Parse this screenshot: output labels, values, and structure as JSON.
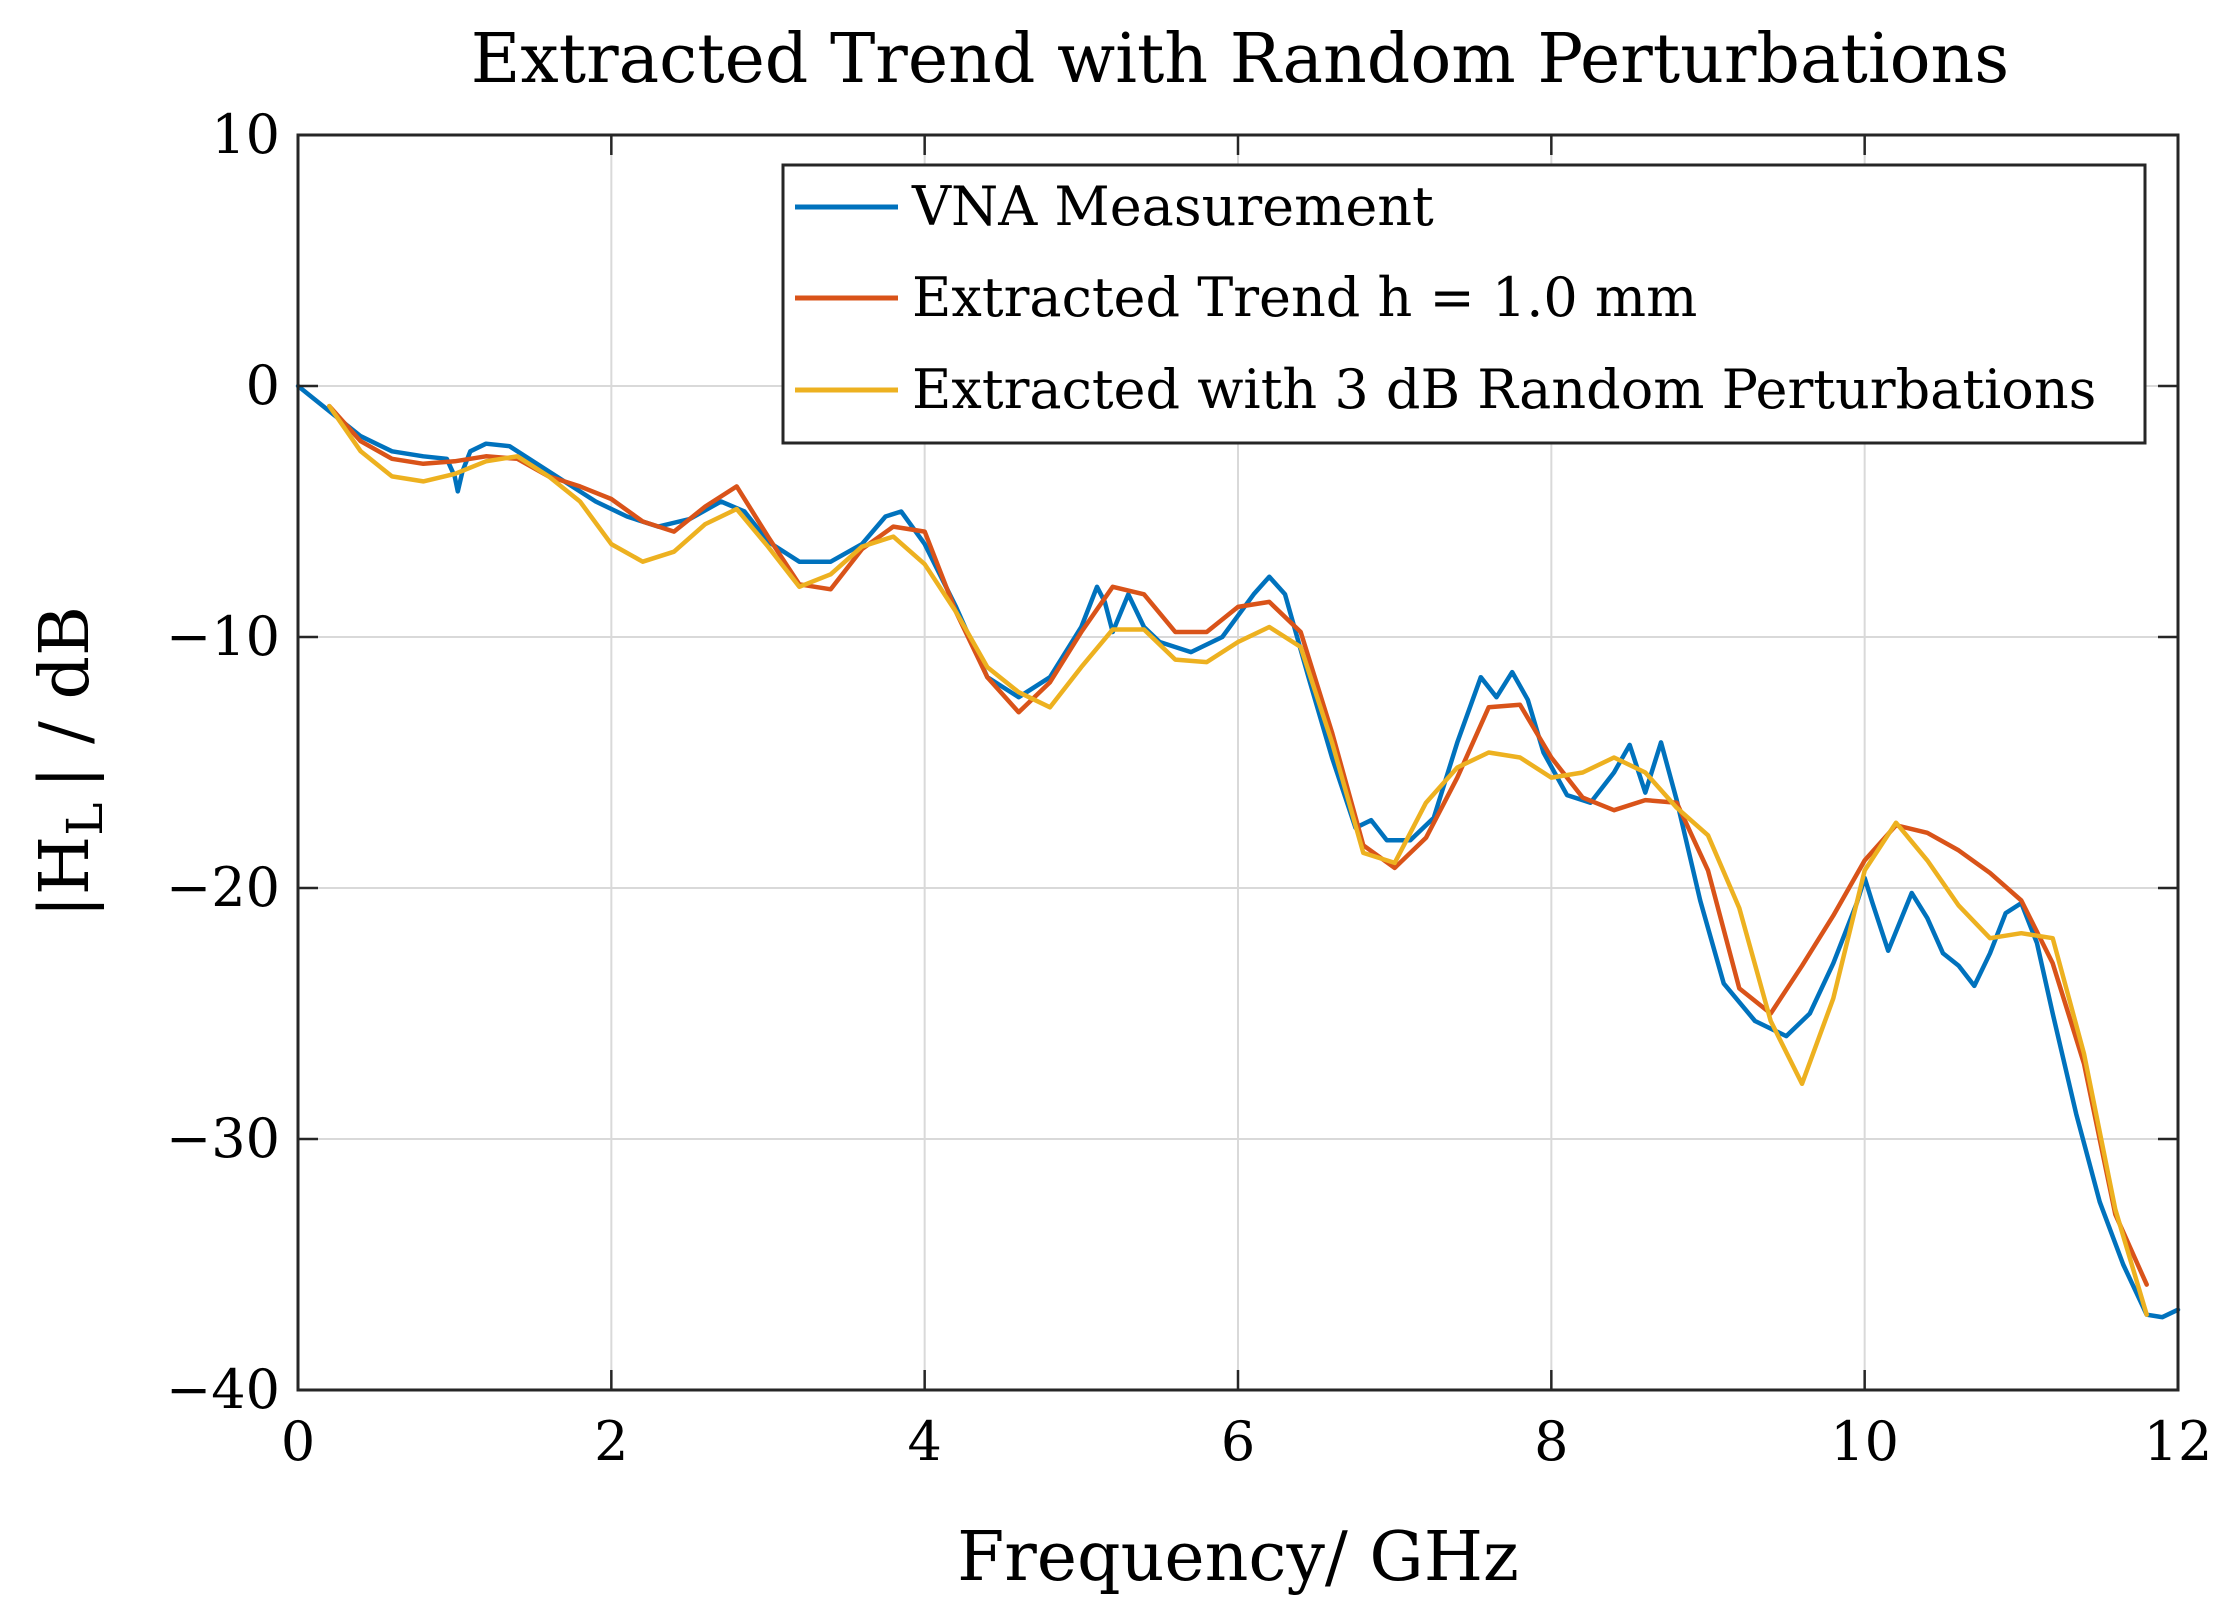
{
  "chart_data": {
    "type": "line",
    "title": "Extracted Trend with Random Perturbations",
    "xlabel": "Frequency/ GHz",
    "ylabel_main": "|H",
    "ylabel_sub": "L",
    "ylabel_rest": "| / dB",
    "xlim": [
      0,
      12
    ],
    "ylim": [
      -40,
      10
    ],
    "xticks": [
      0,
      2,
      4,
      6,
      8,
      10,
      12
    ],
    "xtick_labels": [
      "0",
      "2",
      "4",
      "6",
      "8",
      "10",
      "12"
    ],
    "yticks": [
      10,
      0,
      -10,
      -20,
      -30,
      -40
    ],
    "ytick_labels": [
      "10",
      "0",
      "−10",
      "−20",
      "−30",
      "−40"
    ],
    "grid": true,
    "legend_position": "top-right",
    "series": [
      {
        "name": "VNA Measurement",
        "color": "#0072BD",
        "x": [
          0,
          0.2,
          0.4,
          0.6,
          0.8,
          0.95,
          1.0,
          1.02,
          1.05,
          1.1,
          1.2,
          1.35,
          1.5,
          1.7,
          1.9,
          2.1,
          2.3,
          2.5,
          2.7,
          2.85,
          3.0,
          3.2,
          3.4,
          3.6,
          3.75,
          3.85,
          4.0,
          4.2,
          4.4,
          4.6,
          4.8,
          5.0,
          5.1,
          5.15,
          5.2,
          5.3,
          5.4,
          5.5,
          5.7,
          5.9,
          6.1,
          6.2,
          6.3,
          6.45,
          6.6,
          6.75,
          6.85,
          6.95,
          7.1,
          7.25,
          7.4,
          7.55,
          7.65,
          7.75,
          7.85,
          7.95,
          8.1,
          8.25,
          8.4,
          8.5,
          8.6,
          8.7,
          8.8,
          8.95,
          9.1,
          9.3,
          9.5,
          9.65,
          9.8,
          9.95,
          10.0,
          10.05,
          10.15,
          10.3,
          10.4,
          10.5,
          10.6,
          10.7,
          10.8,
          10.9,
          11.0,
          11.1,
          11.2,
          11.35,
          11.5,
          11.65,
          11.8,
          11.9,
          12.0
        ],
        "y": [
          0,
          -1.0,
          -2.0,
          -2.6,
          -2.8,
          -2.9,
          -3.6,
          -4.2,
          -3.4,
          -2.6,
          -2.3,
          -2.4,
          -3.0,
          -3.8,
          -4.6,
          -5.2,
          -5.6,
          -5.3,
          -4.6,
          -5.0,
          -6.2,
          -7.0,
          -7.0,
          -6.3,
          -5.2,
          -5.0,
          -6.3,
          -8.8,
          -11.6,
          -12.4,
          -11.6,
          -9.6,
          -8.0,
          -8.6,
          -9.8,
          -8.3,
          -9.6,
          -10.2,
          -10.6,
          -10.0,
          -8.3,
          -7.6,
          -8.3,
          -11.6,
          -14.8,
          -17.6,
          -17.3,
          -18.1,
          -18.1,
          -17.2,
          -14.2,
          -11.6,
          -12.4,
          -11.4,
          -12.5,
          -14.6,
          -16.3,
          -16.6,
          -15.4,
          -14.3,
          -16.2,
          -14.2,
          -16.5,
          -20.5,
          -23.8,
          -25.3,
          -25.9,
          -25.0,
          -23.0,
          -20.6,
          -19.6,
          -20.6,
          -22.5,
          -20.2,
          -21.2,
          -22.6,
          -23.1,
          -23.9,
          -22.6,
          -21.0,
          -20.6,
          -22.2,
          -25.0,
          -29.0,
          -32.5,
          -35.0,
          -37.0,
          -37.1,
          -36.8
        ]
      },
      {
        "name": "Extracted Trend h = 1.0 mm",
        "color": "#D95319",
        "x": [
          0.2,
          0.4,
          0.6,
          0.8,
          1.0,
          1.2,
          1.4,
          1.6,
          1.8,
          2.0,
          2.2,
          2.4,
          2.6,
          2.8,
          3.0,
          3.2,
          3.4,
          3.6,
          3.8,
          4.0,
          4.2,
          4.4,
          4.6,
          4.8,
          5.0,
          5.2,
          5.4,
          5.6,
          5.8,
          6.0,
          6.2,
          6.4,
          6.6,
          6.8,
          7.0,
          7.2,
          7.4,
          7.6,
          7.8,
          8.0,
          8.2,
          8.4,
          8.6,
          8.8,
          9.0,
          9.2,
          9.4,
          9.6,
          9.8,
          10.0,
          10.2,
          10.4,
          10.6,
          10.8,
          11.0,
          11.2,
          11.4,
          11.6,
          11.8
        ],
        "y": [
          -0.8,
          -2.2,
          -2.9,
          -3.1,
          -3.0,
          -2.8,
          -2.9,
          -3.6,
          -4.0,
          -4.5,
          -5.4,
          -5.8,
          -4.8,
          -4.0,
          -6.0,
          -7.9,
          -8.1,
          -6.5,
          -5.6,
          -5.8,
          -9.0,
          -11.6,
          -13.0,
          -11.8,
          -9.8,
          -8.0,
          -8.3,
          -9.8,
          -9.8,
          -8.8,
          -8.6,
          -9.8,
          -13.8,
          -18.3,
          -19.2,
          -18.0,
          -15.6,
          -12.8,
          -12.7,
          -14.8,
          -16.4,
          -16.9,
          -16.5,
          -16.6,
          -19.3,
          -24.0,
          -25.0,
          -23.1,
          -21.1,
          -18.9,
          -17.5,
          -17.8,
          -18.5,
          -19.4,
          -20.5,
          -23.0,
          -27.0,
          -33.0,
          -35.8
        ]
      },
      {
        "name": "Extracted with 3 dB Random Perturbations",
        "color": "#EDB120",
        "x": [
          0.2,
          0.4,
          0.6,
          0.8,
          1.0,
          1.2,
          1.4,
          1.6,
          1.8,
          2.0,
          2.2,
          2.4,
          2.6,
          2.8,
          3.0,
          3.2,
          3.4,
          3.6,
          3.8,
          4.0,
          4.2,
          4.4,
          4.6,
          4.8,
          5.0,
          5.2,
          5.4,
          5.6,
          5.8,
          6.0,
          6.2,
          6.4,
          6.6,
          6.8,
          7.0,
          7.2,
          7.4,
          7.6,
          7.8,
          8.0,
          8.2,
          8.4,
          8.6,
          8.8,
          9.0,
          9.2,
          9.4,
          9.6,
          9.8,
          10.0,
          10.2,
          10.4,
          10.6,
          10.8,
          11.0,
          11.2,
          11.4,
          11.6,
          11.8
        ],
        "y": [
          -0.8,
          -2.6,
          -3.6,
          -3.8,
          -3.5,
          -3.0,
          -2.8,
          -3.6,
          -4.6,
          -6.3,
          -7.0,
          -6.6,
          -5.5,
          -4.9,
          -6.4,
          -8.0,
          -7.5,
          -6.4,
          -6.0,
          -7.1,
          -9.0,
          -11.2,
          -12.2,
          -12.8,
          -11.2,
          -9.7,
          -9.7,
          -10.9,
          -11.0,
          -10.2,
          -9.6,
          -10.4,
          -14.2,
          -18.6,
          -19.0,
          -16.6,
          -15.2,
          -14.6,
          -14.8,
          -15.6,
          -15.4,
          -14.8,
          -15.4,
          -16.8,
          -17.9,
          -20.8,
          -25.3,
          -27.8,
          -24.4,
          -19.3,
          -17.4,
          -18.9,
          -20.7,
          -22.0,
          -21.8,
          -22.0,
          -26.6,
          -32.8,
          -37.0
        ]
      }
    ]
  }
}
